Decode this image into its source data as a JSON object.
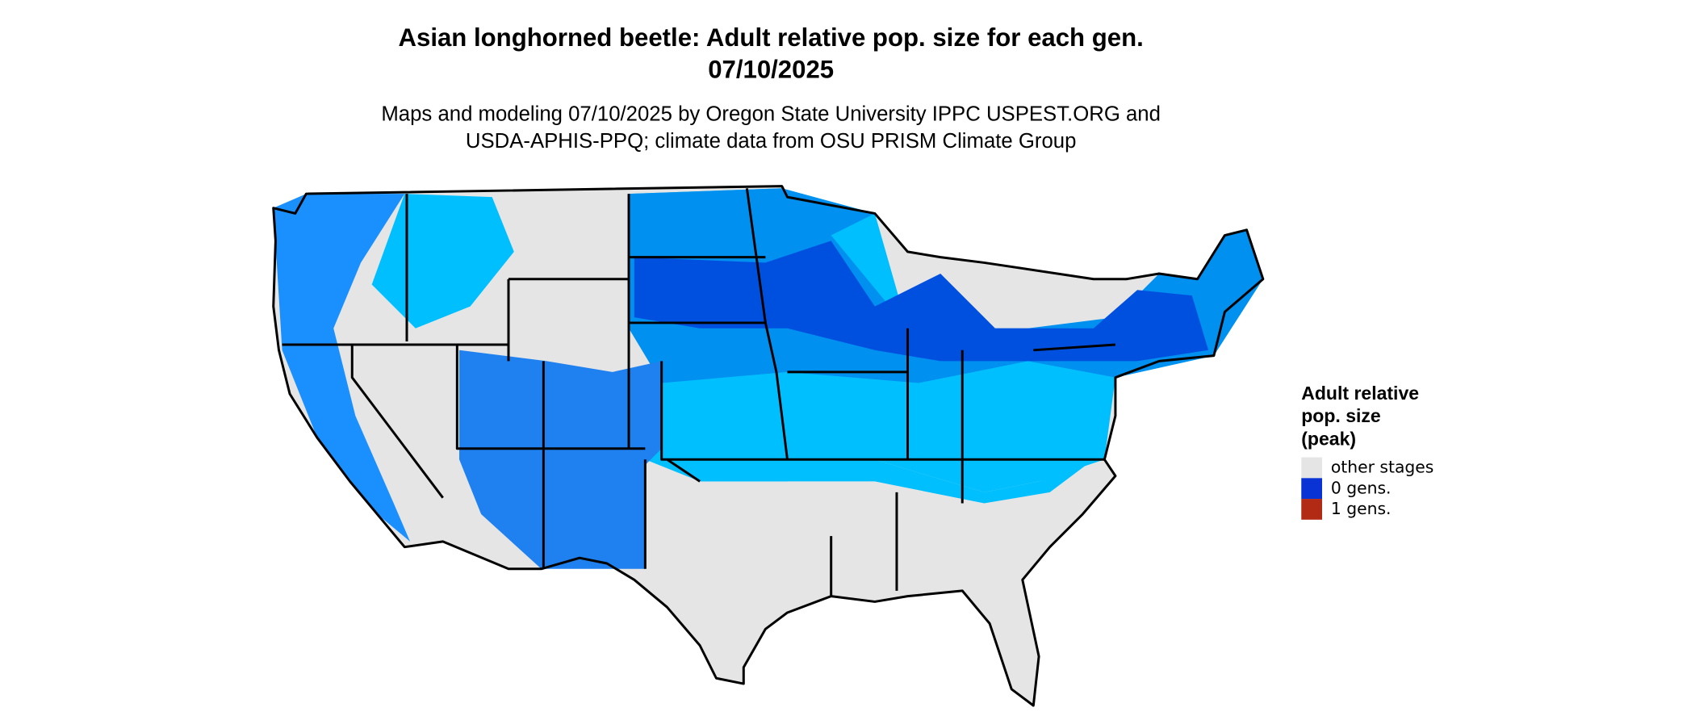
{
  "map": {
    "title": [
      "Asian longhorned beetle: Adult relative pop. size for each gen.",
      "07/10/2025"
    ],
    "subtitle": [
      "Maps and modeling 07/10/2025 by Oregon State University IPPC USPEST.ORG and",
      "USDA-APHIS-PPQ; climate data from OSU PRISM Climate Group"
    ],
    "legend": {
      "title": [
        "Adult relative",
        "pop. size",
        "(peak)"
      ],
      "items": [
        {
          "label": "other stages",
          "color": "#e5e5e5"
        },
        {
          "label": "0 gens.",
          "color": "#0a33d6"
        },
        {
          "label": "1 gens.",
          "color": "#b22a14"
        }
      ]
    }
  }
}
